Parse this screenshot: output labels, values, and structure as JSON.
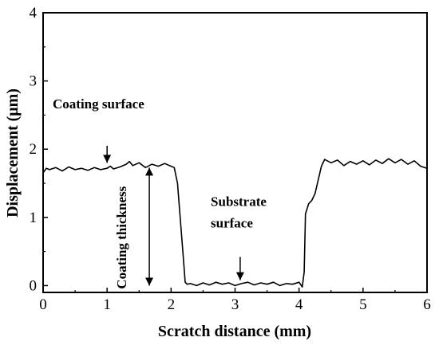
{
  "chart_data": {
    "type": "line",
    "xlabel": "Scratch distance (mm)",
    "ylabel": "Displacement (μm)",
    "xlim": [
      0,
      6
    ],
    "ylim": [
      -0.1,
      4
    ],
    "xticks": [
      "0",
      "1",
      "2",
      "3",
      "4",
      "5",
      "6"
    ],
    "yticks": [
      "0",
      "1",
      "2",
      "3",
      "4"
    ],
    "grid": false,
    "series": [
      {
        "color": "#000000",
        "x": [
          0,
          0.05,
          0.1,
          0.2,
          0.3,
          0.4,
          0.5,
          0.6,
          0.7,
          0.8,
          0.9,
          1.0,
          1.05,
          1.1,
          1.2,
          1.3,
          1.35,
          1.4,
          1.5,
          1.6,
          1.7,
          1.8,
          1.9,
          2.0,
          2.05,
          2.1,
          2.15,
          2.2,
          2.22,
          2.25,
          2.3,
          2.4,
          2.5,
          2.6,
          2.7,
          2.8,
          2.9,
          3.0,
          3.1,
          3.2,
          3.3,
          3.4,
          3.5,
          3.6,
          3.7,
          3.8,
          3.9,
          4.0,
          4.05,
          4.08,
          4.1,
          4.15,
          4.2,
          4.25,
          4.3,
          4.35,
          4.4,
          4.5,
          4.6,
          4.7,
          4.8,
          4.9,
          5.0,
          5.1,
          5.2,
          5.3,
          5.4,
          5.5,
          5.6,
          5.7,
          5.8,
          5.9,
          6.0
        ],
        "y": [
          1.65,
          1.72,
          1.7,
          1.73,
          1.68,
          1.74,
          1.7,
          1.72,
          1.69,
          1.73,
          1.7,
          1.72,
          1.75,
          1.71,
          1.74,
          1.78,
          1.82,
          1.76,
          1.8,
          1.73,
          1.78,
          1.75,
          1.79,
          1.75,
          1.73,
          1.5,
          0.9,
          0.3,
          0.05,
          0.02,
          0.03,
          0.0,
          0.04,
          0.01,
          0.05,
          0.02,
          0.04,
          0.0,
          0.03,
          0.05,
          0.01,
          0.04,
          0.02,
          0.05,
          0.0,
          0.03,
          0.02,
          0.05,
          -0.02,
          0.2,
          1.05,
          1.2,
          1.25,
          1.35,
          1.55,
          1.75,
          1.85,
          1.8,
          1.84,
          1.76,
          1.82,
          1.78,
          1.83,
          1.77,
          1.84,
          1.79,
          1.86,
          1.8,
          1.85,
          1.78,
          1.83,
          1.75,
          1.72
        ]
      }
    ],
    "annotations": [
      {
        "text": "Coating surface",
        "x": 0.15,
        "y": 2.6,
        "arrow_from": [
          1.0,
          2.05
        ],
        "arrow_to": [
          1.0,
          1.8
        ]
      },
      {
        "text": "Substrate",
        "x": 2.62,
        "y": 1.17
      },
      {
        "text": "surface",
        "x": 2.62,
        "y": 0.85,
        "arrow_from": [
          3.08,
          0.42
        ],
        "arrow_to": [
          3.08,
          0.08
        ]
      },
      {
        "text": "Coating thickness",
        "x": 1.3,
        "y": -0.05,
        "rotate": -90,
        "arrow_from": [
          1.66,
          1.73
        ],
        "arrow_to": [
          1.66,
          0.0
        ]
      }
    ]
  }
}
